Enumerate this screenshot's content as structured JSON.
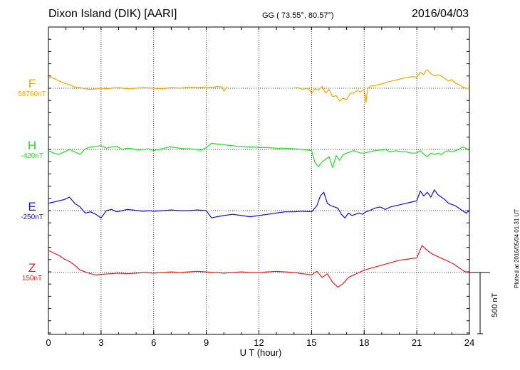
{
  "header": {
    "title_left": "Dixon Island (DIK)  [AARI]",
    "title_mid": "GG ( 73.55°,  80.57°)",
    "title_right": "2016/04/03"
  },
  "plotted_note": "Plotted at 2016/05/04 01:31  UT",
  "scale_bar": {
    "label": "500 nT",
    "value_nT": 500
  },
  "chart_data": {
    "type": "line",
    "title": "Dixon Island (DIK)  [AARI]",
    "xlabel": "U T (hour)",
    "xlim": [
      0,
      24
    ],
    "xticks": [
      0,
      3,
      6,
      9,
      12,
      15,
      18,
      21,
      24
    ],
    "grid": true,
    "series": [
      {
        "name": "F",
        "baseline_label": "58760nT",
        "baseline_nT": 58760,
        "color": "#f0a800",
        "x": [
          0,
          0.3,
          0.6,
          0.9,
          1.2,
          1.5,
          1.8,
          2.1,
          2.4,
          2.7,
          3.0,
          3.3,
          3.6,
          4.0,
          4.5,
          5.0,
          5.5,
          6.0,
          6.5,
          7.0,
          7.5,
          8.0,
          8.5,
          9.0,
          9.3,
          9.6,
          9.9,
          10.0,
          10.2,
          null,
          14.0,
          14.2,
          14.5,
          14.8,
          15.0,
          15.2,
          15.4,
          15.6,
          15.8,
          16.0,
          16.2,
          16.4,
          16.6,
          16.8,
          17.0,
          17.2,
          17.4,
          17.6,
          17.8,
          18.0,
          18.1,
          18.2,
          18.4,
          18.6,
          18.8,
          19.0,
          19.3,
          19.6,
          19.9,
          20.2,
          20.5,
          20.8,
          21.0,
          21.2,
          21.4,
          21.5,
          21.6,
          21.8,
          22.0,
          22.2,
          22.4,
          22.6,
          22.8,
          23.0,
          23.2,
          23.4,
          23.6,
          23.8,
          24.0
        ],
        "y": [
          90,
          80,
          60,
          40,
          30,
          10,
          5,
          -5,
          -10,
          -5,
          0,
          -5,
          0,
          5,
          -5,
          0,
          5,
          0,
          -5,
          5,
          0,
          10,
          5,
          10,
          5,
          15,
          10,
          -25,
          10,
          null,
          0,
          5,
          -10,
          0,
          -40,
          -5,
          -15,
          15,
          -40,
          -10,
          -70,
          -60,
          -105,
          -80,
          -95,
          -40,
          -40,
          -20,
          -30,
          -10,
          -120,
          0,
          20,
          20,
          30,
          35,
          50,
          60,
          70,
          80,
          90,
          95,
          90,
          130,
          110,
          140,
          150,
          120,
          100,
          110,
          100,
          80,
          60,
          70,
          40,
          30,
          10,
          0,
          0
        ]
      },
      {
        "name": "H",
        "baseline_label": "-420nT",
        "baseline_nT": -420,
        "color": "#22dd22",
        "x": [
          0,
          0.3,
          0.6,
          0.9,
          1.2,
          1.5,
          1.8,
          2.1,
          2.4,
          2.7,
          3.0,
          3.3,
          3.6,
          3.9,
          4.2,
          4.5,
          4.8,
          5.1,
          5.4,
          5.7,
          6.0,
          6.3,
          6.6,
          6.9,
          7.2,
          7.5,
          7.8,
          8.1,
          8.4,
          8.7,
          9.0,
          9.3,
          9.6,
          9.9,
          10.2,
          10.5,
          10.8,
          11.1,
          11.4,
          11.7,
          12.0,
          12.5,
          13.0,
          13.5,
          14.0,
          14.5,
          15.0,
          15.2,
          15.4,
          15.6,
          15.8,
          16.0,
          16.2,
          16.4,
          16.6,
          16.8,
          17.0,
          17.2,
          17.4,
          17.6,
          17.8,
          18.0,
          18.3,
          18.6,
          18.9,
          19.2,
          19.5,
          19.8,
          20.1,
          20.4,
          20.7,
          21.0,
          21.2,
          21.4,
          21.6,
          21.8,
          22.0,
          22.2,
          22.4,
          22.6,
          22.8,
          23.0,
          23.2,
          23.4,
          23.6,
          23.8,
          24.0
        ],
        "y": [
          -10,
          -30,
          -40,
          -20,
          0,
          -20,
          -40,
          5,
          20,
          25,
          30,
          10,
          20,
          25,
          0,
          10,
          5,
          -5,
          0,
          5,
          -10,
          0,
          10,
          20,
          15,
          10,
          5,
          5,
          0,
          -5,
          15,
          50,
          45,
          40,
          35,
          30,
          25,
          25,
          20,
          20,
          15,
          15,
          10,
          10,
          5,
          0,
          -10,
          -110,
          -140,
          -100,
          -80,
          -60,
          -150,
          -50,
          -90,
          -40,
          -30,
          -20,
          -10,
          -20,
          -30,
          -30,
          -20,
          -10,
          -5,
          0,
          -20,
          -10,
          -20,
          -20,
          -30,
          -30,
          -10,
          -40,
          -60,
          -30,
          -40,
          -30,
          -40,
          -20,
          -10,
          -20,
          -10,
          0,
          20,
          10,
          -10
        ]
      },
      {
        "name": "E",
        "baseline_label": "-250nT",
        "baseline_nT": -250,
        "color": "#1010e0",
        "x": [
          0,
          0.3,
          0.6,
          0.9,
          1.2,
          1.5,
          1.8,
          2.1,
          2.4,
          2.7,
          3.0,
          3.3,
          3.6,
          3.9,
          4.2,
          4.5,
          4.8,
          5.1,
          5.4,
          5.7,
          6.0,
          6.5,
          7.0,
          7.5,
          8.0,
          8.5,
          9.0,
          9.3,
          9.6,
          10.0,
          10.5,
          11.0,
          11.5,
          12.0,
          12.5,
          13.0,
          13.5,
          14.0,
          14.5,
          15.0,
          15.3,
          15.5,
          15.7,
          15.9,
          16.1,
          16.3,
          16.5,
          16.7,
          16.9,
          17.1,
          17.3,
          17.5,
          17.7,
          17.9,
          18.1,
          18.3,
          18.6,
          18.9,
          19.2,
          19.5,
          19.8,
          20.1,
          20.4,
          20.7,
          21.0,
          21.2,
          21.4,
          21.6,
          21.8,
          22.0,
          22.2,
          22.4,
          22.6,
          22.8,
          23.0,
          23.2,
          23.4,
          23.6,
          23.8,
          24.0
        ],
        "y": [
          60,
          70,
          80,
          90,
          110,
          60,
          30,
          -20,
          -10,
          -30,
          -60,
          0,
          10,
          -10,
          0,
          10,
          5,
          0,
          -5,
          0,
          -5,
          0,
          5,
          0,
          0,
          5,
          0,
          -60,
          -50,
          -40,
          -30,
          -40,
          -50,
          -40,
          -30,
          -20,
          -10,
          -10,
          -5,
          -10,
          40,
          120,
          150,
          60,
          40,
          30,
          20,
          -30,
          -60,
          -20,
          -40,
          -30,
          -20,
          -30,
          -10,
          0,
          20,
          30,
          10,
          30,
          40,
          50,
          60,
          70,
          80,
          160,
          120,
          150,
          110,
          170,
          130,
          110,
          90,
          60,
          50,
          40,
          20,
          0,
          -20,
          0
        ]
      },
      {
        "name": "Z",
        "baseline_label": "150nT",
        "baseline_nT": 150,
        "color": "#e02020",
        "x": [
          0,
          0.3,
          0.6,
          0.9,
          1.2,
          1.5,
          1.8,
          2.1,
          2.4,
          2.7,
          3.0,
          3.5,
          4.0,
          4.5,
          5.0,
          5.5,
          6.0,
          6.5,
          7.0,
          7.5,
          8.0,
          8.5,
          9.0,
          9.5,
          10.0,
          10.5,
          11.0,
          11.5,
          12.0,
          12.5,
          13.0,
          13.5,
          14.0,
          14.5,
          15.0,
          15.3,
          15.6,
          15.9,
          16.2,
          16.5,
          16.8,
          17.1,
          17.4,
          17.7,
          18.0,
          18.5,
          19.0,
          19.5,
          20.0,
          20.5,
          21.0,
          21.3,
          21.6,
          21.9,
          22.2,
          22.5,
          22.8,
          23.1,
          23.4,
          23.7,
          24.0
        ],
        "y": [
          180,
          160,
          140,
          110,
          90,
          60,
          20,
          5,
          -10,
          -20,
          -15,
          -10,
          -5,
          -10,
          -5,
          0,
          -5,
          0,
          5,
          0,
          5,
          10,
          5,
          0,
          -5,
          0,
          5,
          0,
          0,
          5,
          10,
          5,
          0,
          -10,
          -20,
          10,
          -40,
          -10,
          -80,
          -120,
          -90,
          -40,
          -20,
          0,
          20,
          40,
          60,
          80,
          100,
          110,
          120,
          220,
          180,
          150,
          130,
          110,
          90,
          70,
          40,
          10,
          0
        ]
      }
    ]
  }
}
